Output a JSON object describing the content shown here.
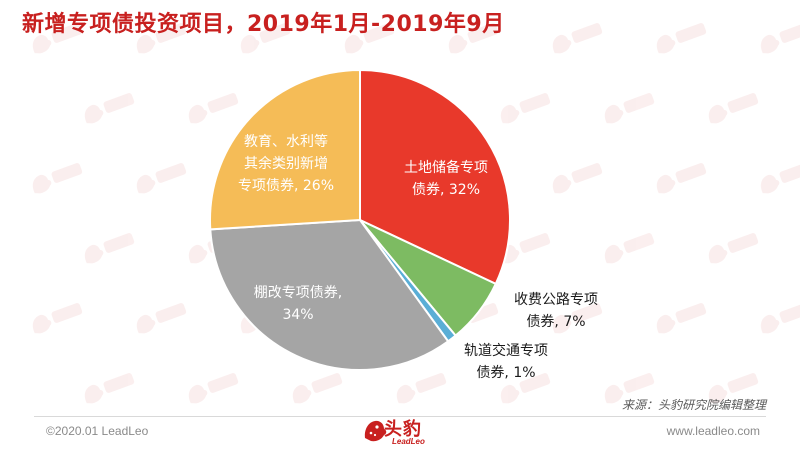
{
  "title": "新增专项债投资项目，2019年1月-2019年9月",
  "source": "来源：头豹研究院编辑整理",
  "footer": {
    "copyright": "©2020.01 LeadLeo",
    "website": "www.leadleo.com",
    "logo_text": "头豹",
    "logo_sub": "LeadLeo"
  },
  "chart_data": {
    "type": "pie",
    "title": "新增专项债投资项目，2019年1月-2019年9月",
    "slices": [
      {
        "label_lines": [
          "土地储备专项",
          "债券, 32%"
        ],
        "value": 32,
        "color": "#e8392b",
        "label_color": "#ffffff"
      },
      {
        "label_lines": [
          "收费公路专项",
          "债券, 7%"
        ],
        "value": 7,
        "color": "#7dbb62",
        "label_color": "#1a1a1a"
      },
      {
        "label_lines": [
          "轨道交通专项",
          "债券, 1%"
        ],
        "value": 1,
        "color": "#5aaed6",
        "label_color": "#1a1a1a"
      },
      {
        "label_lines": [
          "棚改专项债券,",
          "34%"
        ],
        "value": 34,
        "color": "#a5a5a5",
        "label_color": "#ffffff"
      },
      {
        "label_lines": [
          "教育、水利等",
          "其余类别新增",
          "专项债券, 26%"
        ],
        "value": 26,
        "color": "#f5bc57",
        "label_color": "#ffffff"
      }
    ],
    "start_angle_deg": 0,
    "direction": "clockwise"
  }
}
